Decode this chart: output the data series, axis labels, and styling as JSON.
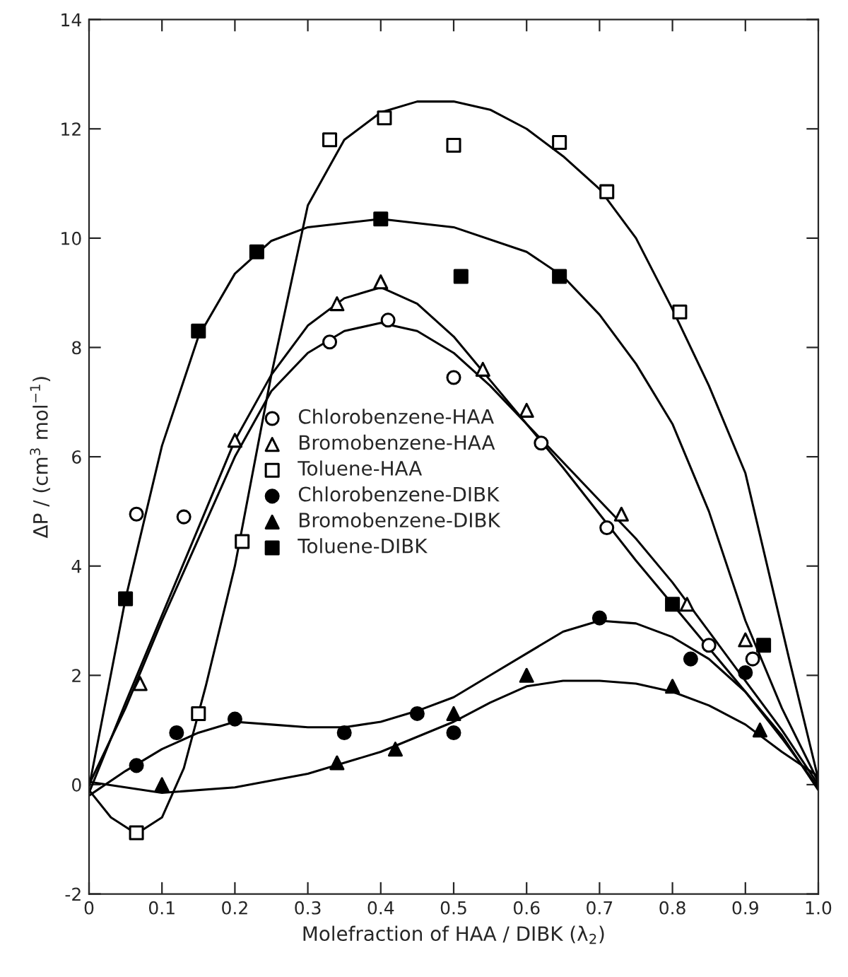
{
  "chart_data": {
    "type": "scatter",
    "xlabel": "Molefraction of HAA / DIBK (λ$_{2}$)",
    "ylabel": "ΔP / (cm$^{3}$ mol$^{−1}$)",
    "xlim": [
      0,
      1
    ],
    "ylim": [
      -2,
      14
    ],
    "xticks": [
      0,
      0.1,
      0.2,
      0.3,
      0.4,
      0.5,
      0.6,
      0.7,
      0.8,
      0.9,
      {
        "value": 1,
        "label": "1.0"
      }
    ],
    "yticks": [
      -2,
      0,
      2,
      4,
      6,
      8,
      10,
      12,
      14
    ],
    "grid": false,
    "legend": "left",
    "series": [
      {
        "name": "Chlorobenzene-HAA",
        "marker": "circle",
        "color": "#ffffff",
        "x": [
          0.065,
          0.13,
          0.33,
          0.41,
          0.5,
          0.62,
          0.71,
          0.85,
          0.91
        ],
        "values": [
          4.95,
          4.9,
          8.1,
          8.5,
          7.45,
          6.25,
          4.7,
          2.55,
          2.3
        ]
      },
      {
        "name": "Bromobenzene-HAA",
        "marker": "triangle",
        "color": "#ffffff",
        "x": [
          0.07,
          0.2,
          0.34,
          0.4,
          0.54,
          0.6,
          0.73,
          0.82,
          0.9
        ],
        "values": [
          1.85,
          6.3,
          8.8,
          9.2,
          7.6,
          6.85,
          4.95,
          3.3,
          2.65
        ]
      },
      {
        "name": "Toluene-HAA",
        "marker": "square",
        "color": "#ffffff",
        "x": [
          0.065,
          0.15,
          0.21,
          0.33,
          0.405,
          0.5,
          0.645,
          0.71,
          0.81
        ],
        "values": [
          -0.88,
          1.3,
          4.45,
          11.8,
          12.2,
          11.7,
          11.75,
          10.85,
          8.65
        ]
      },
      {
        "name": "Chlorobenzene-DIBK",
        "marker": "circle",
        "color": "#000000",
        "x": [
          0.065,
          0.12,
          0.2,
          0.35,
          0.45,
          0.5,
          0.7,
          0.825,
          0.9
        ],
        "values": [
          0.35,
          0.95,
          1.2,
          0.95,
          1.3,
          0.95,
          3.05,
          2.3,
          2.05
        ]
      },
      {
        "name": "Bromobenzene-DIBK",
        "marker": "triangle",
        "color": "#000000",
        "x": [
          0.1,
          0.34,
          0.42,
          0.5,
          0.6,
          0.8,
          0.92
        ],
        "values": [
          0.0,
          0.4,
          0.65,
          1.3,
          2.0,
          1.8,
          1.0
        ]
      },
      {
        "name": "Toluene-DIBK",
        "marker": "square",
        "color": "#000000",
        "x": [
          0.05,
          0.15,
          0.23,
          0.4,
          0.51,
          0.645,
          0.8,
          0.925
        ],
        "values": [
          3.4,
          8.3,
          9.75,
          10.35,
          9.3,
          9.3,
          3.3,
          2.55
        ]
      },
      {
        "type": "line",
        "color": "#000000",
        "x": [
          0,
          0.03,
          0.065,
          0.1,
          0.13,
          0.16,
          0.2,
          0.25,
          0.3,
          0.35,
          0.4,
          0.45,
          0.5,
          0.55,
          0.6,
          0.65,
          0.7,
          0.75,
          0.8,
          0.85,
          0.9,
          0.93,
          0.96,
          1.0
        ],
        "values": [
          -0.1,
          -0.6,
          -0.9,
          -0.6,
          0.3,
          1.8,
          4.0,
          7.5,
          10.6,
          11.8,
          12.3,
          12.5,
          12.5,
          12.35,
          12.0,
          11.5,
          10.9,
          10.0,
          8.7,
          7.3,
          5.7,
          4.0,
          2.3,
          0.1
        ]
      },
      {
        "type": "line",
        "color": "#000000",
        "x": [
          0,
          0.05,
          0.1,
          0.15,
          0.2,
          0.25,
          0.3,
          0.4,
          0.5,
          0.6,
          0.65,
          0.7,
          0.75,
          0.8,
          0.85,
          0.9,
          0.95,
          1.0
        ],
        "values": [
          -0.05,
          3.4,
          6.2,
          8.2,
          9.35,
          9.95,
          10.2,
          10.35,
          10.2,
          9.75,
          9.3,
          8.6,
          7.7,
          6.6,
          5.0,
          3.0,
          1.4,
          0.05
        ]
      },
      {
        "type": "line",
        "color": "#000000",
        "x": [
          0,
          0.05,
          0.1,
          0.15,
          0.2,
          0.25,
          0.3,
          0.35,
          0.4,
          0.45,
          0.5,
          0.55,
          0.6,
          0.65,
          0.7,
          0.75,
          0.8,
          0.85,
          0.9,
          0.95,
          1.0
        ],
        "values": [
          -0.15,
          1.5,
          3.1,
          4.7,
          6.3,
          7.5,
          8.4,
          8.9,
          9.1,
          8.8,
          8.2,
          7.4,
          6.6,
          5.9,
          5.2,
          4.5,
          3.7,
          2.8,
          1.9,
          1.0,
          0
        ]
      },
      {
        "type": "line",
        "color": "#000000",
        "x": [
          0,
          0.05,
          0.1,
          0.15,
          0.2,
          0.25,
          0.3,
          0.35,
          0.4,
          0.45,
          0.5,
          0.55,
          0.6,
          0.65,
          0.7,
          0.75,
          0.8,
          0.85,
          0.9,
          0.95,
          1.0
        ],
        "values": [
          0,
          1.4,
          3.0,
          4.5,
          6.0,
          7.2,
          7.9,
          8.3,
          8.45,
          8.3,
          7.9,
          7.3,
          6.6,
          5.8,
          4.95,
          4.1,
          3.3,
          2.5,
          1.7,
          0.85,
          -0.05
        ]
      },
      {
        "type": "line",
        "color": "#000000",
        "x": [
          0,
          0.05,
          0.1,
          0.15,
          0.2,
          0.25,
          0.3,
          0.35,
          0.4,
          0.45,
          0.5,
          0.55,
          0.6,
          0.65,
          0.7,
          0.75,
          0.8,
          0.85,
          0.9,
          0.95,
          1.0
        ],
        "values": [
          -0.2,
          0.25,
          0.65,
          0.95,
          1.15,
          1.1,
          1.05,
          1.05,
          1.15,
          1.35,
          1.6,
          2.0,
          2.4,
          2.8,
          3.0,
          2.95,
          2.7,
          2.3,
          1.7,
          0.9,
          -0.1
        ]
      },
      {
        "type": "line",
        "color": "#000000",
        "x": [
          0,
          0.1,
          0.2,
          0.3,
          0.4,
          0.5,
          0.55,
          0.6,
          0.65,
          0.7,
          0.75,
          0.8,
          0.85,
          0.9,
          0.95,
          1.0
        ],
        "values": [
          0.05,
          -0.15,
          -0.05,
          0.2,
          0.6,
          1.15,
          1.5,
          1.8,
          1.9,
          1.9,
          1.85,
          1.7,
          1.45,
          1.1,
          0.6,
          0.15
        ]
      }
    ]
  }
}
